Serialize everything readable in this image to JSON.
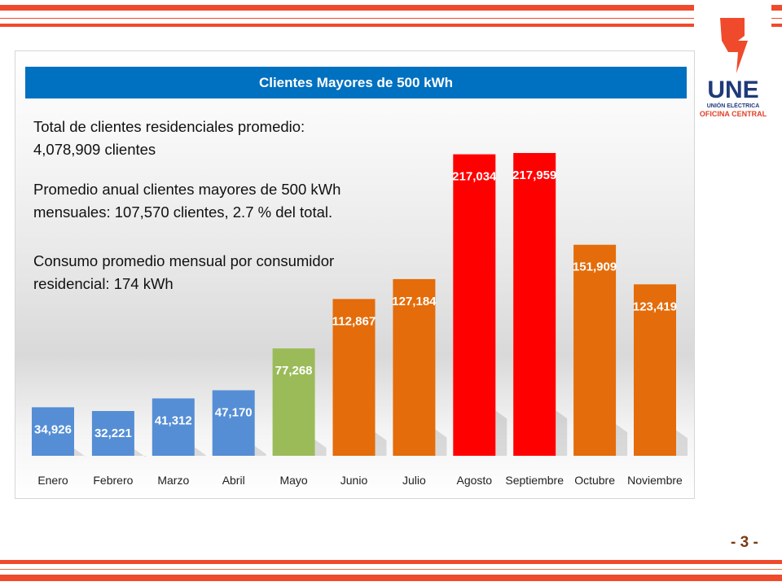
{
  "logo": {
    "name": "UNE",
    "line1": "UNIÓN ELÉCTRICA",
    "line2": "OFICINA CENTRAL"
  },
  "page_number": "- 3 -",
  "panel": {
    "title": "Clientes Mayores de 500 kWh",
    "text": [
      "Total de clientes residenciales promedio:",
      "4,078,909 clientes",
      "Promedio anual clientes mayores de 500 kWh",
      "mensuales: 107,570 clientes, 2.7 % del total.",
      "Consumo promedio mensual por consumidor",
      "residencial: 174 kWh"
    ]
  },
  "colors": {
    "accent_line": "#F04A2C",
    "title_bar": "#0070C0",
    "blue": "#558ED5",
    "green": "#9BBB59",
    "orange": "#E46C0A",
    "red": "#FF0000"
  },
  "chart_data": {
    "type": "bar",
    "title": "Clientes Mayores de 500 kWh",
    "xlabel": "",
    "ylabel": "",
    "ylim": [
      0,
      217959
    ],
    "grid": false,
    "categories": [
      "Enero",
      "Febrero",
      "Marzo",
      "Abril",
      "Mayo",
      "Junio",
      "Julio",
      "Agosto",
      "Septiembre",
      "Octubre",
      "Noviembre"
    ],
    "values": [
      34926,
      32221,
      41312,
      47170,
      77268,
      112867,
      127184,
      217034,
      217959,
      151909,
      123419
    ],
    "data_labels": [
      "34,926",
      "32,221",
      "41,312",
      "47,170",
      "77,268",
      "112,867",
      "127,184",
      "217,034",
      "217,959",
      "151,909",
      "123,419"
    ],
    "bar_colors": [
      "#558ED5",
      "#558ED5",
      "#558ED5",
      "#558ED5",
      "#9BBB59",
      "#E46C0A",
      "#E46C0A",
      "#FF0000",
      "#FF0000",
      "#E46C0A",
      "#E46C0A"
    ]
  }
}
